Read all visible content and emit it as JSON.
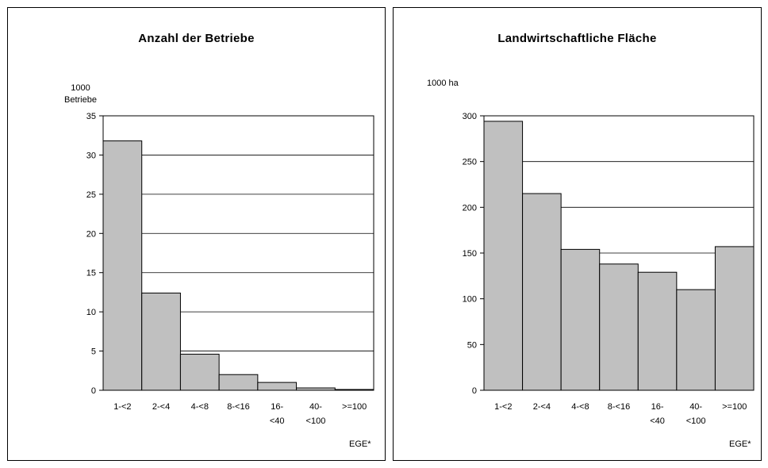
{
  "chart_data": [
    {
      "type": "bar",
      "title": "Anzahl der Betriebe",
      "ylabel_lines": [
        "1000",
        "Betriebe"
      ],
      "xlabel": "EGE*",
      "categories": [
        "1-<2",
        "2-<4",
        "4-<8",
        "8-<16",
        "16-<40",
        "40-<100",
        ">=100"
      ],
      "category_labels": [
        [
          "1-<2"
        ],
        [
          "2-<4"
        ],
        [
          "4-<8"
        ],
        [
          "8-<16"
        ],
        [
          "16-",
          "<40"
        ],
        [
          "40-",
          "<100"
        ],
        [
          ">=100"
        ]
      ],
      "values": [
        31.8,
        12.4,
        4.6,
        2.0,
        1.0,
        0.3,
        0.1
      ],
      "ylim": [
        0,
        35
      ],
      "yticks": [
        0,
        5,
        10,
        15,
        20,
        25,
        30,
        35
      ],
      "grid": true,
      "bar_color": "#C0C0C0"
    },
    {
      "type": "bar",
      "title": "Landwirtschaftliche Fläche",
      "ylabel_lines": [
        "1000 ha"
      ],
      "xlabel": "EGE*",
      "categories": [
        "1-<2",
        "2-<4",
        "4-<8",
        "8-<16",
        "16-<40",
        "40-<100",
        ">=100"
      ],
      "category_labels": [
        [
          "1-<2"
        ],
        [
          "2-<4"
        ],
        [
          "4-<8"
        ],
        [
          "8-<16"
        ],
        [
          "16-",
          "<40"
        ],
        [
          "40-",
          "<100"
        ],
        [
          ">=100"
        ]
      ],
      "values": [
        294,
        215,
        154,
        138,
        129,
        110,
        157
      ],
      "ylim": [
        0,
        300
      ],
      "yticks": [
        0,
        50,
        100,
        150,
        200,
        250,
        300
      ],
      "grid": true,
      "bar_color": "#C0C0C0"
    }
  ]
}
